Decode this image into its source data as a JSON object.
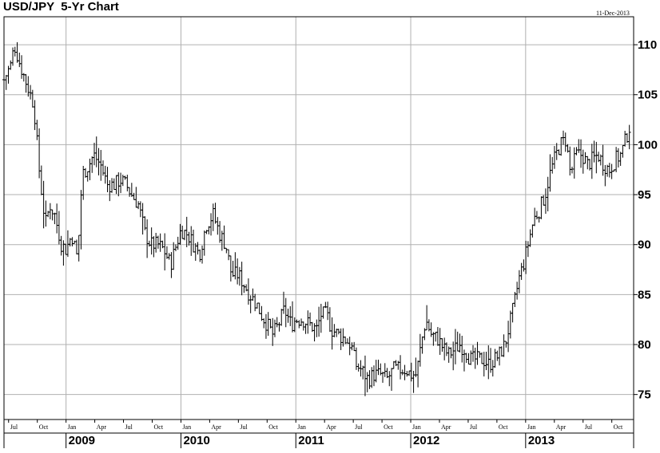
{
  "chart_data": {
    "type": "bar",
    "title": "USD/JPY  5-Yr Chart",
    "date_label": "11-Dec-2013",
    "ylim": [
      72.5,
      112.8
    ],
    "y_ticks": [
      75,
      80,
      85,
      90,
      95,
      100,
      105,
      110
    ],
    "x_range": [
      2008.46,
      2013.94
    ],
    "month_ticks": [
      {
        "x": 2008.5,
        "label": "Jul"
      },
      {
        "x": 2008.75,
        "label": "Oct"
      },
      {
        "x": 2009.0,
        "label": "Jan"
      },
      {
        "x": 2009.25,
        "label": "Apr"
      },
      {
        "x": 2009.5,
        "label": "Jul"
      },
      {
        "x": 2009.75,
        "label": "Oct"
      },
      {
        "x": 2010.0,
        "label": "Jan"
      },
      {
        "x": 2010.25,
        "label": "Apr"
      },
      {
        "x": 2010.5,
        "label": "Jul"
      },
      {
        "x": 2010.75,
        "label": "Oct"
      },
      {
        "x": 2011.0,
        "label": "Jan"
      },
      {
        "x": 2011.25,
        "label": "Apr"
      },
      {
        "x": 2011.5,
        "label": "Jul"
      },
      {
        "x": 2011.75,
        "label": "Oct"
      },
      {
        "x": 2012.0,
        "label": "Jan"
      },
      {
        "x": 2012.25,
        "label": "Apr"
      },
      {
        "x": 2012.5,
        "label": "Jul"
      },
      {
        "x": 2012.75,
        "label": "Oct"
      },
      {
        "x": 2013.0,
        "label": "Jan"
      },
      {
        "x": 2013.25,
        "label": "Apr"
      },
      {
        "x": 2013.5,
        "label": "Jul"
      },
      {
        "x": 2013.75,
        "label": "Oct"
      }
    ],
    "year_ticks": [
      {
        "x": 2009,
        "label": "2009"
      },
      {
        "x": 2010,
        "label": "2010"
      },
      {
        "x": 2011,
        "label": "2011"
      },
      {
        "x": 2012,
        "label": "2012"
      },
      {
        "x": 2013,
        "label": "2013"
      }
    ],
    "grid": true,
    "anchors": [
      [
        2008.46,
        106.5
      ],
      [
        2008.52,
        108
      ],
      [
        2008.55,
        110
      ],
      [
        2008.6,
        108
      ],
      [
        2008.66,
        106
      ],
      [
        2008.72,
        104
      ],
      [
        2008.77,
        97
      ],
      [
        2008.82,
        92
      ],
      [
        2008.86,
        94
      ],
      [
        2008.9,
        93
      ],
      [
        2008.96,
        90
      ],
      [
        2009.0,
        89.5
      ],
      [
        2009.05,
        91
      ],
      [
        2009.1,
        88.5
      ],
      [
        2009.14,
        97
      ],
      [
        2009.2,
        98
      ],
      [
        2009.24,
        99
      ],
      [
        2009.3,
        98
      ],
      [
        2009.36,
        96
      ],
      [
        2009.42,
        96
      ],
      [
        2009.47,
        96.5
      ],
      [
        2009.52,
        96
      ],
      [
        2009.57,
        95
      ],
      [
        2009.63,
        94
      ],
      [
        2009.69,
        91
      ],
      [
        2009.74,
        90
      ],
      [
        2009.8,
        90
      ],
      [
        2009.85,
        89.5
      ],
      [
        2009.91,
        88
      ],
      [
        2009.96,
        90
      ],
      [
        2010.0,
        91.5
      ],
      [
        2010.06,
        91
      ],
      [
        2010.11,
        90
      ],
      [
        2010.16,
        89
      ],
      [
        2010.22,
        92
      ],
      [
        2010.28,
        93
      ],
      [
        2010.34,
        91
      ],
      [
        2010.39,
        90
      ],
      [
        2010.44,
        87
      ],
      [
        2010.5,
        87
      ],
      [
        2010.55,
        86
      ],
      [
        2010.6,
        85
      ],
      [
        2010.66,
        84
      ],
      [
        2010.7,
        83
      ],
      [
        2010.75,
        82
      ],
      [
        2010.8,
        81
      ],
      [
        2010.85,
        82
      ],
      [
        2010.9,
        83.5
      ],
      [
        2010.96,
        82
      ],
      [
        2011.0,
        82.5
      ],
      [
        2011.06,
        82.5
      ],
      [
        2011.12,
        82
      ],
      [
        2011.18,
        81.5
      ],
      [
        2011.22,
        83
      ],
      [
        2011.27,
        83
      ],
      [
        2011.31,
        81.5
      ],
      [
        2011.37,
        81
      ],
      [
        2011.43,
        80.5
      ],
      [
        2011.48,
        80
      ],
      [
        2011.52,
        78
      ],
      [
        2011.57,
        77.5
      ],
      [
        2011.63,
        76.5
      ],
      [
        2011.68,
        77
      ],
      [
        2011.74,
        77
      ],
      [
        2011.79,
        76.5
      ],
      [
        2011.85,
        77.5
      ],
      [
        2011.91,
        77.5
      ],
      [
        2011.96,
        77.5
      ],
      [
        2012.0,
        77
      ],
      [
        2012.05,
        77
      ],
      [
        2012.09,
        80
      ],
      [
        2012.13,
        82.5
      ],
      [
        2012.18,
        81
      ],
      [
        2012.24,
        80.5
      ],
      [
        2012.29,
        79.5
      ],
      [
        2012.33,
        79
      ],
      [
        2012.38,
        79.5
      ],
      [
        2012.43,
        80
      ],
      [
        2012.47,
        79.5
      ],
      [
        2012.52,
        78.5
      ],
      [
        2012.58,
        78.5
      ],
      [
        2012.63,
        78.5
      ],
      [
        2012.68,
        78
      ],
      [
        2012.73,
        78.5
      ],
      [
        2012.77,
        79
      ],
      [
        2012.82,
        80
      ],
      [
        2012.86,
        82
      ],
      [
        2012.9,
        84
      ],
      [
        2012.94,
        86.5
      ],
      [
        2012.98,
        88
      ],
      [
        2013.02,
        90
      ],
      [
        2013.07,
        92.5
      ],
      [
        2013.12,
        93.5
      ],
      [
        2013.17,
        95
      ],
      [
        2013.21,
        97
      ],
      [
        2013.25,
        98.5
      ],
      [
        2013.3,
        100
      ],
      [
        2013.35,
        100.5
      ],
      [
        2013.39,
        97
      ],
      [
        2013.44,
        99
      ],
      [
        2013.49,
        99
      ],
      [
        2013.54,
        98
      ],
      [
        2013.58,
        98.5
      ],
      [
        2013.63,
        99
      ],
      [
        2013.68,
        98
      ],
      [
        2013.73,
        97.5
      ],
      [
        2013.78,
        98.5
      ],
      [
        2013.83,
        99
      ],
      [
        2013.87,
        100.5
      ],
      [
        2013.91,
        102
      ]
    ]
  }
}
